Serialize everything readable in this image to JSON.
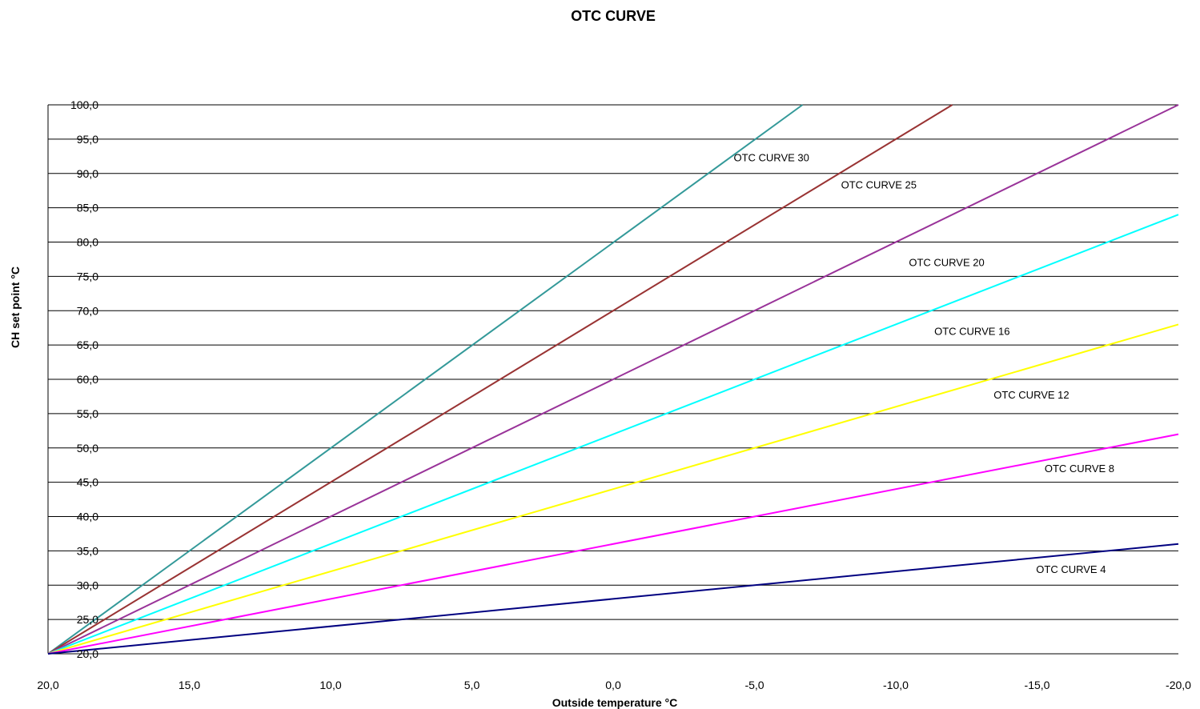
{
  "chart_data": {
    "type": "line",
    "title": "OTC CURVE",
    "xlabel": "Outside temperature °C",
    "ylabel": "CH set point °C",
    "x_ticks": [
      "20,0",
      "15,0",
      "10,0",
      "5,0",
      "0,0",
      "-5,0",
      "-10,0",
      "-15,0",
      "-20,0"
    ],
    "y_ticks": [
      "20,0",
      "25,0",
      "30,0",
      "35,0",
      "40,0",
      "45,0",
      "50,0",
      "55,0",
      "60,0",
      "65,0",
      "70,0",
      "75,0",
      "80,0",
      "85,0",
      "90,0",
      "95,0",
      "100,0"
    ],
    "xlim": [
      20,
      -20
    ],
    "ylim": [
      20,
      100
    ],
    "x_reversed": true,
    "grid": "horizontal",
    "legend": "inline labels",
    "series": [
      {
        "name": "OTC CURVE 30",
        "color": "#339999",
        "x": [
          20,
          -6.7
        ],
        "y": [
          20,
          100
        ]
      },
      {
        "name": "OTC CURVE 25",
        "color": "#993333",
        "x": [
          20,
          -12
        ],
        "y": [
          20,
          100
        ]
      },
      {
        "name": "OTC CURVE 20",
        "color": "#993399",
        "x": [
          20,
          -20
        ],
        "y": [
          20,
          100
        ]
      },
      {
        "name": "OTC CURVE 16",
        "color": "#00ffff",
        "x": [
          20,
          -20
        ],
        "y": [
          20,
          84
        ]
      },
      {
        "name": "OTC CURVE 12",
        "color": "#ffff00",
        "x": [
          20,
          -20
        ],
        "y": [
          20,
          68
        ]
      },
      {
        "name": "OTC CURVE 8",
        "color": "#ff00ff",
        "x": [
          20,
          -20
        ],
        "y": [
          20,
          52
        ]
      },
      {
        "name": "OTC CURVE 4",
        "color": "#000080",
        "x": [
          20,
          -20
        ],
        "y": [
          20,
          36
        ]
      }
    ]
  }
}
